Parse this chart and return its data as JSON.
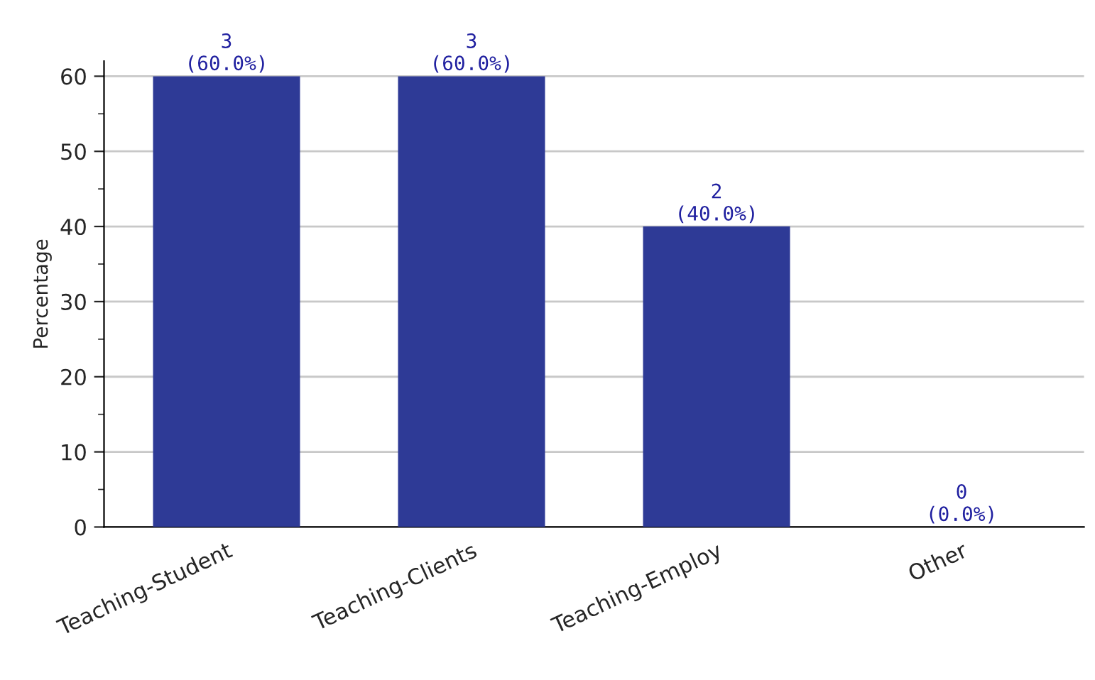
{
  "chart_data": {
    "type": "bar",
    "ylabel": "Percentage",
    "categories": [
      "Teaching-Student",
      "Teaching-Clients",
      "Teaching-Employ",
      "Other"
    ],
    "values": [
      60,
      60,
      40,
      0
    ],
    "value_labels": [
      "3\n(60.0%)",
      "3\n(60.0%)",
      "2\n(40.0%)",
      "0\n(0.0%)"
    ],
    "color": "#2e3a96",
    "ylim": [
      0,
      62
    ],
    "yticks": [
      0,
      10,
      20,
      30,
      40,
      50,
      60
    ],
    "grid": "y",
    "legend": false
  }
}
